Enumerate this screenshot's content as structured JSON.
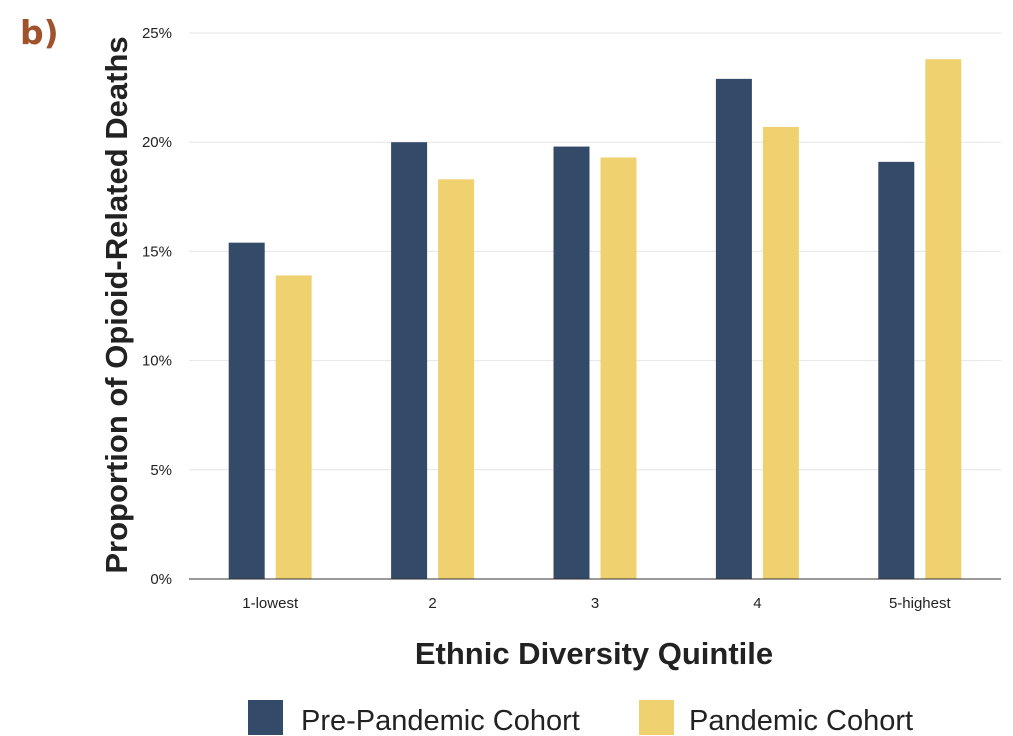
{
  "panel_label": "b)",
  "colors": {
    "panel_label": "#a0522d",
    "pre_pandemic": "#344a69",
    "pandemic": "#efd170",
    "gridline": "#e6e6e6",
    "axis": "#333333"
  },
  "chart_data": {
    "type": "bar",
    "title": "",
    "xlabel": "Ethnic Diversity Quintile",
    "ylabel": "Proportion of Opioid-Related Deaths",
    "categories": [
      "1-lowest",
      "2",
      "3",
      "4",
      "5-highest"
    ],
    "series": [
      {
        "name": "Pre-Pandemic Cohort",
        "values": [
          15.4,
          20.0,
          19.8,
          22.9,
          19.1
        ]
      },
      {
        "name": "Pandemic Cohort",
        "values": [
          13.9,
          18.3,
          19.3,
          20.7,
          23.8
        ]
      }
    ],
    "ylim": [
      0,
      25
    ],
    "yticks": [
      0,
      5,
      10,
      15,
      20,
      25
    ],
    "ytick_labels": [
      "0%",
      "5%",
      "10%",
      "15%",
      "20%",
      "25%"
    ],
    "grid": true,
    "legend_position": "bottom"
  }
}
